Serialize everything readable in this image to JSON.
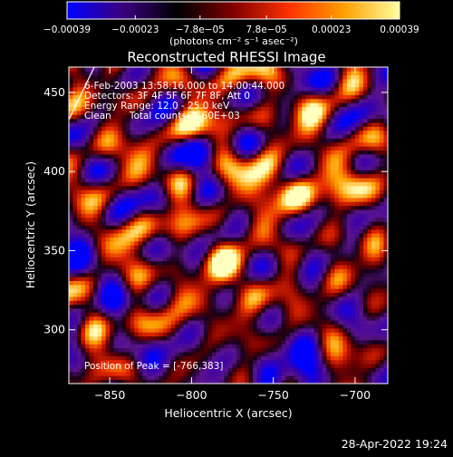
{
  "chart_data": {
    "type": "heatmap",
    "title": "Reconstructed RHESSI Image",
    "xlabel": "Heliocentric X (arcsec)",
    "ylabel": "Heliocentric Y (arcsec)",
    "xlim": [
      -875,
      -680
    ],
    "ylim": [
      266,
      466
    ],
    "xticks": [
      -850,
      -800,
      -750,
      -700
    ],
    "xtick_labels": [
      "−850",
      "−800",
      "−750",
      "−700"
    ],
    "yticks": [
      300,
      350,
      400,
      450
    ],
    "ytick_labels": [
      "300",
      "350",
      "400",
      "450"
    ],
    "colorbar": {
      "min": -0.00039,
      "max": 0.00039,
      "ticks": [
        -0.00039,
        -0.00023,
        -7.8e-05,
        7.8e-05,
        0.00023,
        0.00039
      ],
      "tick_labels": [
        "−0.00039",
        "−0.00023",
        "−7.8e−05",
        "7.8e−05",
        "0.00023",
        "0.00039"
      ],
      "units": "(photons cm⁻² s⁻¹ asec⁻²)",
      "colors": [
        "#0000ff",
        "#3a0080",
        "#000000",
        "#800000",
        "#ff3000",
        "#ffa000",
        "#ffffa0"
      ]
    },
    "annotations": [
      "6-Feb-2003 13:58:16.000 to 14:00:44.000",
      "Detectors: 3F 4F 5F 6F 7F 8F, Att 0",
      "Energy Range: 12.0 - 25.0 keV",
      "Clean      Total counts: 1.60E+03"
    ],
    "peak_label": "Position of Peak = [-766,383]",
    "peak": [
      -766,
      383
    ],
    "sources": [
      {
        "x": -766,
        "y": 383,
        "amp": 1.0
      },
      {
        "x": -738,
        "y": 388,
        "amp": 0.8
      },
      {
        "x": -752,
        "y": 400,
        "amp": 0.7
      },
      {
        "x": -800,
        "y": 428,
        "amp": 0.65
      },
      {
        "x": -772,
        "y": 438,
        "amp": 0.6
      },
      {
        "x": -832,
        "y": 455,
        "amp": 0.55
      },
      {
        "x": -718,
        "y": 430,
        "amp": 0.45
      },
      {
        "x": -712,
        "y": 380,
        "amp": 0.55
      },
      {
        "x": -700,
        "y": 392,
        "amp": 0.5
      },
      {
        "x": -845,
        "y": 362,
        "amp": 0.5
      },
      {
        "x": -822,
        "y": 345,
        "amp": 0.45
      },
      {
        "x": -780,
        "y": 345,
        "amp": 0.5
      },
      {
        "x": -742,
        "y": 350,
        "amp": 0.35
      },
      {
        "x": -705,
        "y": 335,
        "amp": 0.5
      },
      {
        "x": -790,
        "y": 318,
        "amp": 0.55
      },
      {
        "x": -760,
        "y": 318,
        "amp": 0.4
      },
      {
        "x": -838,
        "y": 312,
        "amp": 0.4
      },
      {
        "x": -815,
        "y": 300,
        "amp": 0.35
      },
      {
        "x": -860,
        "y": 300,
        "amp": 0.3
      },
      {
        "x": -702,
        "y": 302,
        "amp": 0.35
      },
      {
        "x": -790,
        "y": 455,
        "amp": 0.4
      },
      {
        "x": -855,
        "y": 410,
        "amp": 0.3
      }
    ],
    "negative_region": {
      "x": -740,
      "y": 278,
      "amp": 0.9
    }
  },
  "footer": {
    "timestamp": "28-Apr-2022 19:24"
  }
}
